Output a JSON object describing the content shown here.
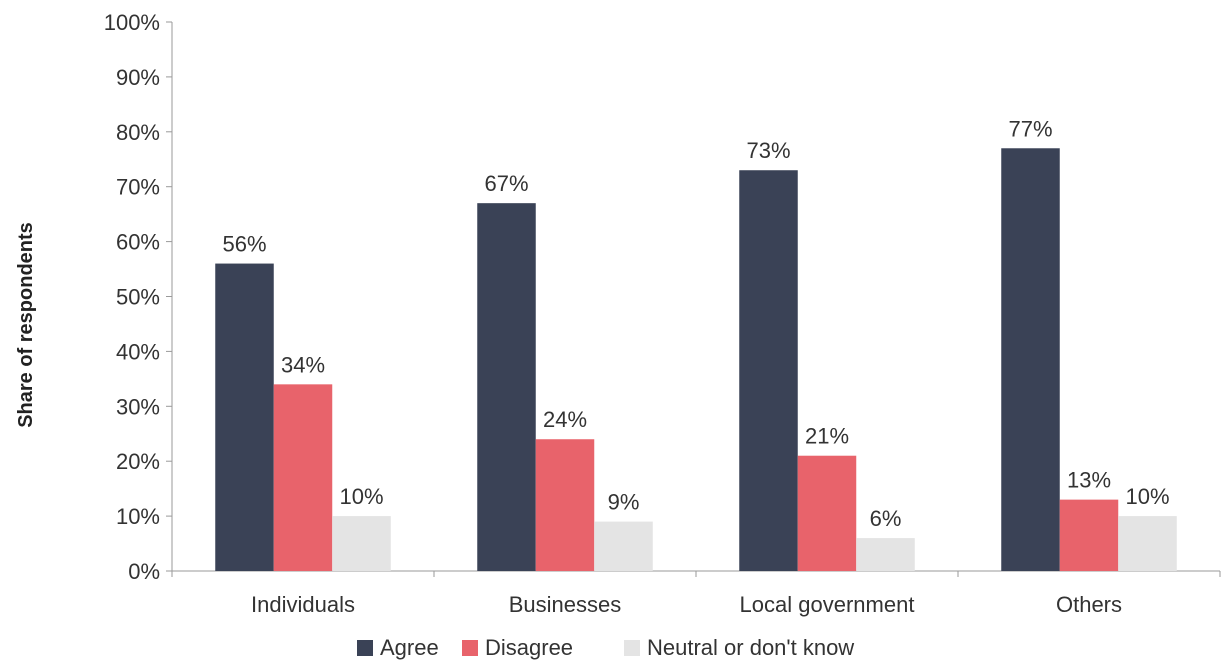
{
  "chart_data": {
    "type": "bar",
    "ylabel": "Share of respondents",
    "xlabel": "",
    "ylim": [
      0,
      100
    ],
    "yticks": [
      "0%",
      "10%",
      "20%",
      "30%",
      "40%",
      "50%",
      "60%",
      "70%",
      "80%",
      "90%",
      "100%"
    ],
    "grid": false,
    "legend_position": "bottom",
    "categories": [
      "Individuals",
      "Businesses",
      "Local government",
      "Others"
    ],
    "series": [
      {
        "name": "Agree",
        "color": "#3a4256",
        "values": [
          56,
          67,
          73,
          77
        ],
        "labels": [
          "56%",
          "67%",
          "73%",
          "77%"
        ]
      },
      {
        "name": "Disagree",
        "color": "#e8636b",
        "values": [
          34,
          24,
          21,
          13
        ],
        "labels": [
          "34%",
          "24%",
          "21%",
          "13%"
        ]
      },
      {
        "name": "Neutral or don't know",
        "color": "#e4e4e4",
        "values": [
          10,
          9,
          6,
          10
        ],
        "labels": [
          "10%",
          "9%",
          "6%",
          "10%"
        ]
      }
    ]
  }
}
